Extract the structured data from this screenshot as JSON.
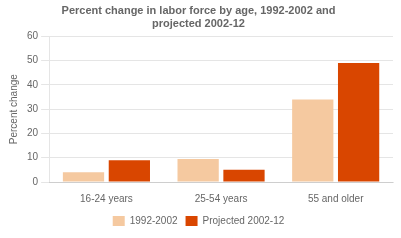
{
  "chart_data": {
    "type": "bar",
    "title": "Percent change in labor force by age, 1992-2002 and\nprojected 2002-12",
    "categories": [
      "16-24 years",
      "25-54 years",
      "55 and older"
    ],
    "series": [
      {
        "name": "1992-2002",
        "color": "#F5C9A0",
        "values": [
          4,
          9.5,
          34
        ]
      },
      {
        "name": "Projected 2002-12",
        "color": "#D94600",
        "values": [
          9,
          5,
          49
        ]
      }
    ],
    "ylabel": "Percent change",
    "ylim": [
      0,
      60
    ],
    "yticks": [
      0,
      10,
      20,
      30,
      40,
      50,
      60
    ],
    "grid": true,
    "legend": "bottom"
  }
}
